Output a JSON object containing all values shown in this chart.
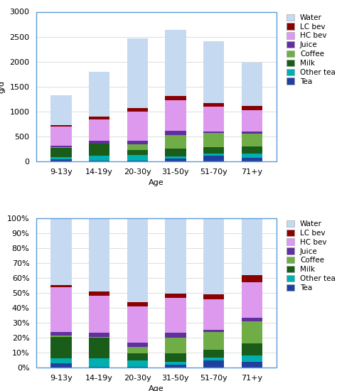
{
  "categories": [
    "9-13y",
    "14-19y",
    "20-30y",
    "31-50y",
    "51-70y",
    "71+y"
  ],
  "beverages": [
    "Tea",
    "Other tea",
    "Milk",
    "Coffee",
    "Juice",
    "HC bev",
    "LC bev",
    "Water"
  ],
  "colors": [
    "#2040a0",
    "#00b0b0",
    "#1a5c1a",
    "#70ad47",
    "#6030a0",
    "#dd99ee",
    "#8b0000",
    "#c5d9f1"
  ],
  "values_abs": [
    [
      40,
      40,
      190,
      10,
      30,
      390,
      20,
      600
    ],
    [
      10,
      100,
      240,
      10,
      50,
      430,
      50,
      900
    ],
    [
      10,
      110,
      110,
      110,
      70,
      590,
      70,
      1390
    ],
    [
      50,
      50,
      150,
      280,
      80,
      620,
      80,
      1330
    ],
    [
      110,
      50,
      120,
      290,
      30,
      490,
      80,
      1240
    ],
    [
      70,
      80,
      140,
      270,
      40,
      430,
      80,
      870
    ]
  ],
  "values_pct": [
    [
      3.0,
      3.0,
      14.6,
      0.8,
      2.3,
      30.0,
      1.5,
      46.2
    ],
    [
      0.6,
      5.7,
      13.7,
      0.6,
      2.9,
      24.6,
      2.9,
      51.4
    ],
    [
      0.4,
      4.5,
      4.5,
      4.5,
      2.9,
      24.1,
      2.9,
      56.9
    ],
    [
      1.9,
      1.9,
      5.7,
      10.6,
      3.0,
      23.5,
      3.0,
      50.4
    ],
    [
      4.6,
      2.1,
      5.0,
      12.1,
      1.3,
      20.4,
      3.3,
      51.7
    ],
    [
      3.9,
      4.4,
      7.8,
      15.0,
      2.2,
      23.9,
      4.4,
      44.4
    ]
  ],
  "ylim_abs": [
    0,
    3000
  ],
  "xlabel": "Age",
  "ylabel_abs": "g/d",
  "legend_labels": [
    "Water",
    "LC bev",
    "HC bev",
    "Juice",
    "Coffee",
    "Milk",
    "Other tea",
    "Tea"
  ],
  "background": "#ffffff",
  "border_color": "#5b9bd5",
  "grid_color": "#d8d8d8"
}
